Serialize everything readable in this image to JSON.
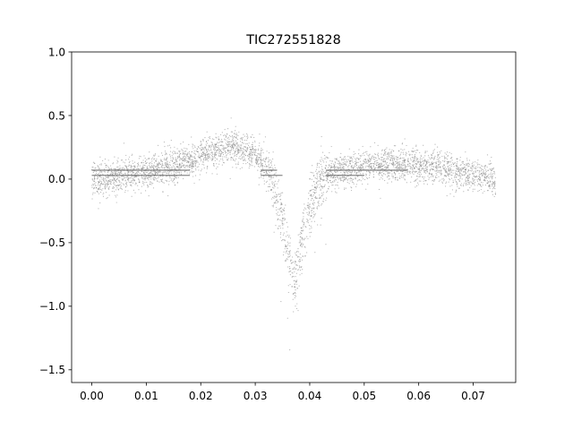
{
  "chart_data": {
    "type": "scatter",
    "title": "TIC272551828",
    "xlabel": "",
    "ylabel": "",
    "xlim": [
      -0.0037,
      0.0778
    ],
    "ylim": [
      -1.6,
      1.0
    ],
    "grid": false,
    "legend": "none",
    "x_ticks": [
      0.0,
      0.01,
      0.02,
      0.03,
      0.04,
      0.05,
      0.06,
      0.07
    ],
    "x_tick_labels": [
      "0.00",
      "0.01",
      "0.02",
      "0.03",
      "0.04",
      "0.05",
      "0.06",
      "0.07"
    ],
    "y_ticks": [
      1.0,
      0.5,
      0.0,
      -0.5,
      -1.0,
      -1.5
    ],
    "y_tick_labels": [
      "1.0",
      "0.5",
      "0.0",
      "−0.5",
      "−1.0",
      "−1.5"
    ],
    "point_color": "#808080",
    "x_range": [
      0.0,
      0.0741
    ],
    "trend": {
      "x": [
        0.0,
        0.005,
        0.01,
        0.015,
        0.02,
        0.025,
        0.03,
        0.033,
        0.035,
        0.036,
        0.0365,
        0.037,
        0.0375,
        0.038,
        0.039,
        0.04,
        0.041,
        0.042,
        0.043,
        0.045,
        0.05,
        0.055,
        0.06,
        0.065,
        0.07,
        0.074
      ],
      "y": [
        -0.02,
        0.02,
        0.06,
        0.1,
        0.18,
        0.26,
        0.2,
        0.02,
        -0.3,
        -0.55,
        -0.68,
        -0.8,
        -0.78,
        -0.62,
        -0.38,
        -0.2,
        -0.08,
        -0.01,
        0.04,
        0.06,
        0.1,
        0.12,
        0.11,
        0.08,
        0.03,
        0.0
      ]
    },
    "bands": [
      {
        "x_start": 0.0,
        "x_end": 0.018,
        "y": 0.07
      },
      {
        "x_start": 0.0,
        "x_end": 0.018,
        "y": 0.03
      },
      {
        "x_start": 0.031,
        "x_end": 0.034,
        "y": 0.07
      },
      {
        "x_start": 0.031,
        "x_end": 0.035,
        "y": 0.03
      },
      {
        "x_start": 0.043,
        "x_end": 0.058,
        "y": 0.07
      },
      {
        "x_start": 0.043,
        "x_end": 0.05,
        "y": 0.03
      }
    ]
  }
}
